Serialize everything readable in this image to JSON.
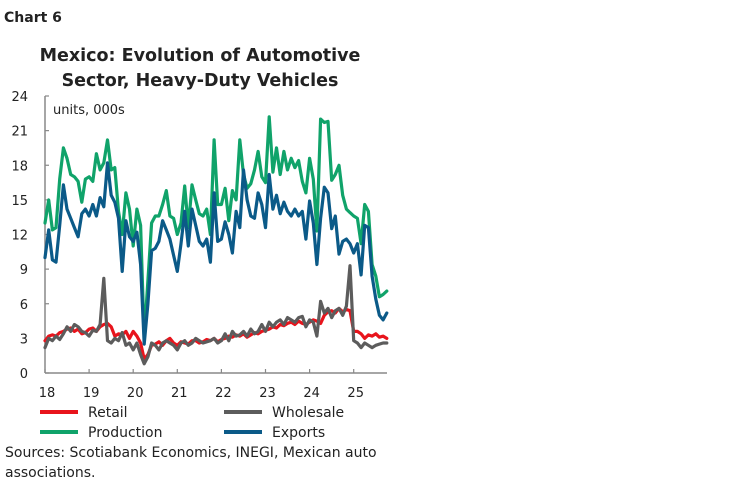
{
  "chart_label": "Chart 6",
  "chart_data": {
    "type": "line",
    "title": "Mexico: Evolution of Automotive Sector, Heavy-Duty Vehicles",
    "title_lines": [
      "Mexico: Evolution of Automotive",
      "Sector, Heavy-Duty Vehicles"
    ],
    "ylabel": "units, 000s",
    "xlabel": "",
    "x_start": "2018-01",
    "x_frequency": "monthly",
    "x_ticks": [
      "18",
      "19",
      "20",
      "21",
      "22",
      "23",
      "24",
      "25"
    ],
    "ylim": [
      0,
      24
    ],
    "y_ticks": [
      0,
      3,
      6,
      9,
      12,
      15,
      18,
      21,
      24
    ],
    "grid": false,
    "legend_position": "bottom",
    "series": [
      {
        "name": "Retail",
        "color": "#e8141c",
        "values": [
          2.8,
          3.2,
          3.3,
          3.2,
          3.5,
          3.6,
          3.8,
          3.9,
          3.6,
          3.8,
          3.4,
          3.5,
          3.8,
          3.9,
          3.6,
          4.0,
          4.2,
          4.3,
          4.0,
          3.2,
          3.4,
          3.3,
          3.6,
          3.0,
          3.6,
          3.2,
          2.6,
          1.2,
          1.6,
          2.4,
          2.5,
          2.7,
          2.4,
          2.8,
          3.0,
          2.6,
          2.4,
          2.7,
          2.6,
          2.5,
          2.8,
          2.8,
          2.6,
          2.7,
          2.9,
          2.8,
          3.0,
          2.7,
          2.9,
          3.0,
          3.2,
          3.1,
          3.3,
          3.2,
          3.4,
          3.1,
          3.3,
          3.5,
          3.4,
          3.6,
          3.7,
          3.8,
          4.0,
          3.9,
          4.2,
          4.1,
          4.3,
          4.4,
          4.2,
          4.5,
          4.3,
          4.2,
          4.4,
          4.6,
          4.5,
          4.3,
          5.0,
          5.3,
          5.4,
          5.2,
          5.6,
          5.3,
          5.5,
          5.4,
          3.6,
          3.6,
          3.4,
          3.0,
          3.3,
          3.2,
          3.4,
          3.1,
          3.2,
          3.0
        ]
      },
      {
        "name": "Wholesale",
        "color": "#5c5c5c",
        "values": [
          2.2,
          3.0,
          2.8,
          3.2,
          2.9,
          3.4,
          4.0,
          3.6,
          4.2,
          4.0,
          3.6,
          3.5,
          3.2,
          3.7,
          3.6,
          4.2,
          8.2,
          2.8,
          2.6,
          3.0,
          2.8,
          3.5,
          2.4,
          2.6,
          2.0,
          2.6,
          1.6,
          0.8,
          1.4,
          2.6,
          2.4,
          2.0,
          2.6,
          2.8,
          2.6,
          2.4,
          2.0,
          2.6,
          2.8,
          2.4,
          2.6,
          3.0,
          2.8,
          2.6,
          2.7,
          2.8,
          3.0,
          2.6,
          2.8,
          3.4,
          2.8,
          3.6,
          3.2,
          3.3,
          3.6,
          3.2,
          3.8,
          3.4,
          3.6,
          4.2,
          3.6,
          4.4,
          4.0,
          4.4,
          4.6,
          4.2,
          4.8,
          4.6,
          4.4,
          4.8,
          4.9,
          4.0,
          4.6,
          4.4,
          3.2,
          6.2,
          5.2,
          5.6,
          4.8,
          5.4,
          5.6,
          5.0,
          5.8,
          9.3,
          2.8,
          2.6,
          2.2,
          2.6,
          2.4,
          2.2,
          2.4,
          2.5,
          2.6,
          2.6
        ]
      },
      {
        "name": "Production",
        "color": "#10a36a",
        "values": [
          13.0,
          15.0,
          12.4,
          12.6,
          16.8,
          19.5,
          18.6,
          17.2,
          17.0,
          16.6,
          14.8,
          16.8,
          17.0,
          16.6,
          19.0,
          17.6,
          18.2,
          20.2,
          17.6,
          17.8,
          14.0,
          12.0,
          15.6,
          14.2,
          11.0,
          14.2,
          12.8,
          3.0,
          8.0,
          13.0,
          13.6,
          13.6,
          14.6,
          15.8,
          13.6,
          13.4,
          12.0,
          13.0,
          16.2,
          12.6,
          16.3,
          15.0,
          13.8,
          13.6,
          14.2,
          12.0,
          20.2,
          14.6,
          14.6,
          16.0,
          13.2,
          15.8,
          15.0,
          20.2,
          17.2,
          16.0,
          16.4,
          17.6,
          19.2,
          17.0,
          16.5,
          22.2,
          17.4,
          19.5,
          17.2,
          19.2,
          17.6,
          18.6,
          17.8,
          18.4,
          16.6,
          15.6,
          18.6,
          16.8,
          12.3,
          22.0,
          21.7,
          21.8,
          16.7,
          17.2,
          18.0,
          15.4,
          14.2,
          13.9,
          13.6,
          13.4,
          11.2,
          14.6,
          14.0,
          9.4,
          8.4,
          6.6,
          6.8,
          7.1
        ]
      },
      {
        "name": "Exports",
        "color": "#0b5a88",
        "values": [
          10.0,
          12.4,
          9.8,
          9.6,
          12.8,
          16.3,
          14.2,
          13.4,
          12.6,
          11.8,
          13.8,
          14.2,
          13.6,
          14.6,
          13.6,
          15.2,
          14.4,
          18.2,
          15.4,
          14.8,
          13.4,
          8.8,
          13.2,
          11.8,
          11.4,
          12.2,
          9.4,
          2.5,
          6.0,
          10.6,
          10.8,
          11.4,
          13.2,
          12.4,
          11.6,
          10.2,
          8.8,
          11.2,
          14.0,
          11.0,
          14.2,
          12.8,
          11.4,
          11.0,
          11.6,
          9.6,
          15.6,
          11.4,
          11.6,
          13.1,
          12.0,
          10.4,
          14.0,
          12.6,
          17.6,
          15.0,
          13.6,
          13.4,
          15.6,
          14.6,
          12.6,
          17.2,
          14.2,
          15.4,
          13.8,
          14.8,
          14.0,
          13.6,
          14.2,
          13.6,
          14.0,
          11.6,
          14.9,
          13.0,
          9.4,
          13.4,
          16.1,
          15.6,
          12.5,
          13.6,
          10.3,
          11.4,
          11.6,
          11.2,
          10.4,
          11.2,
          8.5,
          12.8,
          12.6,
          8.4,
          6.4,
          5.0,
          4.6,
          5.2
        ]
      }
    ]
  },
  "source": [
    "Sources: Scotiabank Economics, INEGI, Mexican auto",
    "associations."
  ]
}
